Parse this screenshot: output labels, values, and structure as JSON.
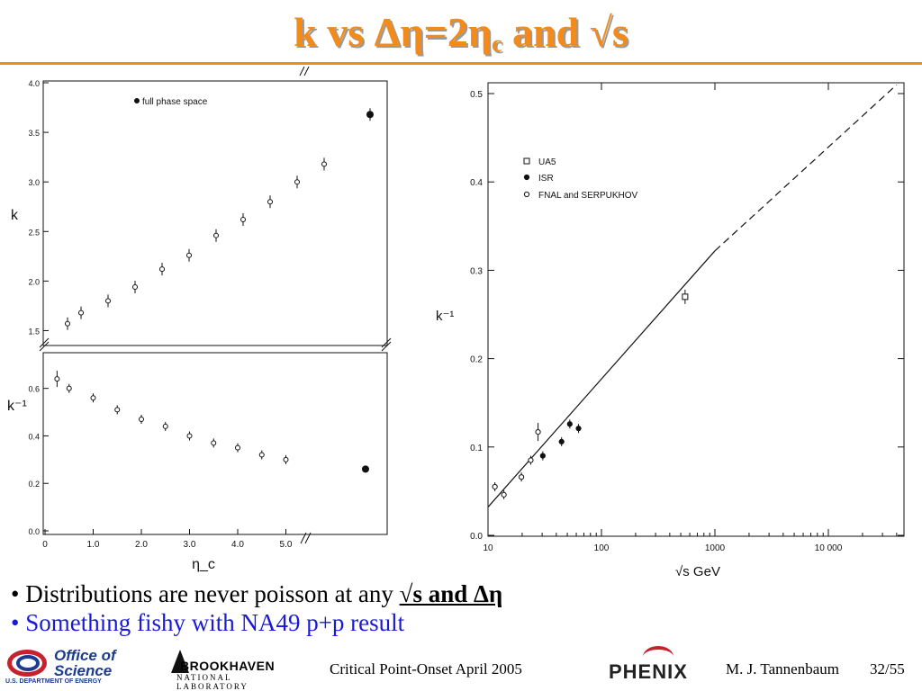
{
  "slide": {
    "title_main": "k vs Δη=2η",
    "title_sub": "c",
    "title_end": " and √s",
    "bullets": [
      {
        "prefix": "• Distributions are never poisson at any ",
        "emphasis": "√s and Δη"
      },
      {
        "text": "• Something fishy with NA49 p+p result"
      }
    ],
    "footer": {
      "org1_line1": "Office of",
      "org1_line2": "Science",
      "org1_caption": "U.S. DEPARTMENT OF ENERGY",
      "org2_line1": "BROOKHAVEN",
      "org2_line2": "NATIONAL LABORATORY",
      "conference": "Critical Point-Onset April 2005",
      "experiment": "PHENIX",
      "author": "M. J. Tannenbaum",
      "page": "32/55"
    },
    "colors": {
      "title": "#f28a1c",
      "bullet2": "#1a1ad6"
    }
  },
  "chart_data": [
    {
      "type": "scatter",
      "panel": "top-left",
      "ylabel": "k",
      "xlabel": "",
      "ylim": [
        1.35,
        4.0
      ],
      "xlim": [
        0,
        6.0
      ],
      "y_ticks": [
        "1.5",
        "2.0",
        "2.5",
        "3.0",
        "3.5",
        "4.0"
      ],
      "legend": "full phase space",
      "legend_position": "top",
      "series": [
        {
          "marker": "open",
          "x": [
            0.25,
            0.5,
            1.0,
            1.5,
            2.0,
            2.5,
            3.0,
            3.5,
            4.0,
            4.5,
            5.0
          ],
          "y": [
            1.57,
            1.68,
            1.8,
            1.94,
            2.12,
            2.26,
            2.46,
            2.62,
            2.8,
            3.0,
            3.18
          ]
        },
        {
          "marker": "filled",
          "label": "full phase space",
          "x": [
            5.85
          ],
          "y": [
            3.68
          ]
        }
      ]
    },
    {
      "type": "scatter",
      "panel": "bottom-left",
      "ylabel": "k⁻¹",
      "xlabel": "η_c",
      "ylim": [
        0.0,
        0.72
      ],
      "xlim": [
        0,
        6.0
      ],
      "x_ticks": [
        "0",
        "1.0",
        "2.0",
        "3.0",
        "4.0",
        "5.0"
      ],
      "y_ticks": [
        "0.0",
        "0.2",
        "0.4",
        "0.6"
      ],
      "series": [
        {
          "marker": "open",
          "x": [
            0.25,
            0.5,
            1.0,
            1.5,
            2.0,
            2.5,
            3.0,
            3.5,
            4.0,
            4.5,
            5.0
          ],
          "y": [
            0.64,
            0.6,
            0.56,
            0.51,
            0.47,
            0.44,
            0.4,
            0.37,
            0.35,
            0.32,
            0.3
          ]
        },
        {
          "marker": "filled",
          "x": [
            5.85
          ],
          "y": [
            0.26
          ]
        }
      ]
    },
    {
      "type": "scatter",
      "panel": "right",
      "xscale": "log",
      "xlabel": "√s  GeV",
      "ylabel": "k⁻¹",
      "xlim": [
        10,
        40000
      ],
      "ylim": [
        0.0,
        0.51
      ],
      "x_ticks": [
        "10",
        "100",
        "1000",
        "10 000"
      ],
      "y_ticks": [
        "0.0",
        "0.1",
        "0.2",
        "0.3",
        "0.4",
        "0.5"
      ],
      "legend_position": "top-left",
      "series": [
        {
          "name": "UA5",
          "marker": "open-square",
          "x": [
            546
          ],
          "y": [
            0.27
          ]
        },
        {
          "name": "ISR",
          "marker": "filled",
          "x": [
            30.4,
            44.5,
            52.6,
            62.8
          ],
          "y": [
            0.09,
            0.106,
            0.126,
            0.121
          ]
        },
        {
          "name": "FNAL and SERPUKHOV",
          "marker": "open",
          "x": [
            11.5,
            13.8,
            19.7,
            23.8,
            27.6
          ],
          "y": [
            0.055,
            0.046,
            0.066,
            0.085,
            0.117
          ]
        }
      ],
      "fit_line": {
        "x": [
          10,
          1000,
          40000
        ],
        "y": [
          0.032,
          0.322,
          0.51
        ],
        "style": "solid to 1000, dashed beyond"
      }
    }
  ]
}
